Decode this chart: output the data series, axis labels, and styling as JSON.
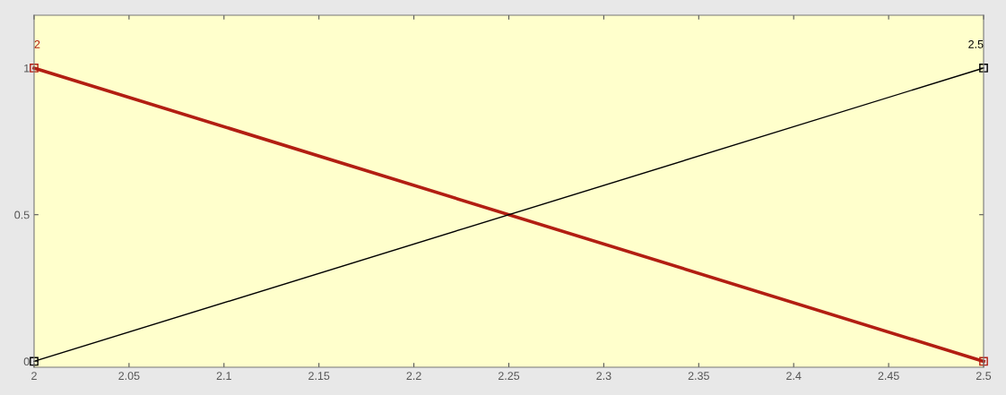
{
  "chart_data": {
    "type": "line",
    "series": [
      {
        "color": "#b21e12",
        "values": [
          1,
          0
        ]
      },
      {
        "color": "#000000",
        "values": [
          0,
          1
        ]
      }
    ],
    "x": [
      2,
      2.5
    ],
    "annotations": [
      "2",
      "2.5"
    ],
    "xlim": [
      2,
      2.5
    ],
    "ylim": [
      -0.02,
      1.18
    ],
    "xticks": [
      2,
      2.05,
      2.1,
      2.15,
      2.2,
      2.25,
      2.3,
      2.35,
      2.4,
      2.45,
      2.5
    ],
    "yticks": [
      0,
      0.5,
      1
    ],
    "marker": "square",
    "line_style": "solid",
    "grid": false
  }
}
